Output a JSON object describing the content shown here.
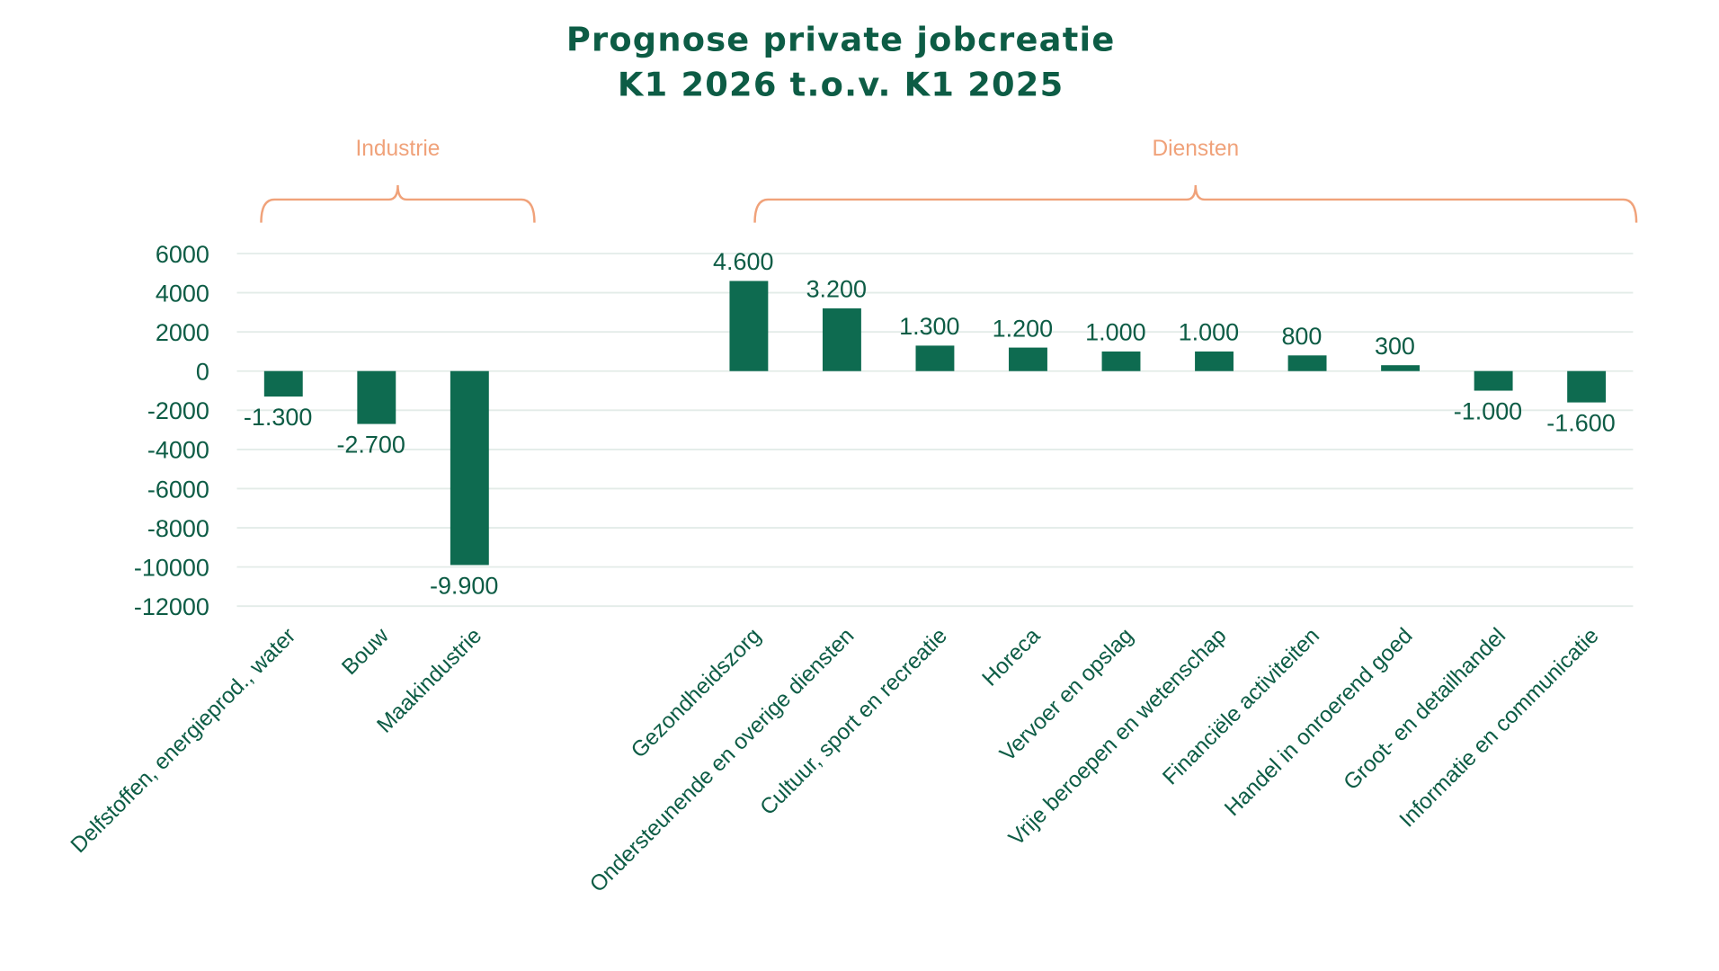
{
  "chart_data": {
    "type": "bar",
    "title": [
      "Prognose private jobcreatie",
      "K1 2026 t.o.v. K1 2025"
    ],
    "xlabel": "",
    "ylabel": "",
    "ylim": [
      -12000,
      6000
    ],
    "yticks": [
      6000,
      4000,
      2000,
      0,
      -2000,
      -4000,
      -6000,
      -8000,
      -10000,
      -12000
    ],
    "grid": true,
    "bar_color": "#0e6b50",
    "text_color": "#0d5c45",
    "group_color": "#f0a27a",
    "groups": [
      {
        "label": "Industrie",
        "categories": [
          "Delfstoffen, energieprod., water",
          "Bouw",
          "Maakindustrie"
        ]
      },
      {
        "label": "Diensten",
        "categories": [
          "Gezondheidszorg",
          "Ondersteunende en overige diensten",
          "Cultuur, sport en recreatie",
          "Horeca",
          "Vervoer en opslag",
          "Vrije beroepen en wetenschap",
          "Financiële activiteiten",
          "Handel in onroerend goed",
          "Groot- en detailhandel",
          "Informatie en communicatie"
        ]
      }
    ],
    "categories": [
      "Delfstoffen, energieprod., water",
      "Bouw",
      "Maakindustrie",
      "Gezondheidszorg",
      "Ondersteunende en overige diensten",
      "Cultuur, sport en recreatie",
      "Horeca",
      "Vervoer en opslag",
      "Vrije beroepen en wetenschap",
      "Financiële activiteiten",
      "Handel in onroerend goed",
      "Groot- en detailhandel",
      "Informatie en communicatie"
    ],
    "values": [
      -1300,
      -2700,
      -9900,
      4600,
      3200,
      1300,
      1200,
      1000,
      1000,
      800,
      300,
      -1000,
      -1600
    ],
    "data_labels": [
      "-1.300",
      "-2.700",
      "-9.900",
      "4.600",
      "3.200",
      "1.300",
      "1.200",
      "1.000",
      "1.000",
      "800",
      "300",
      "-1.000",
      "-1.600"
    ]
  }
}
